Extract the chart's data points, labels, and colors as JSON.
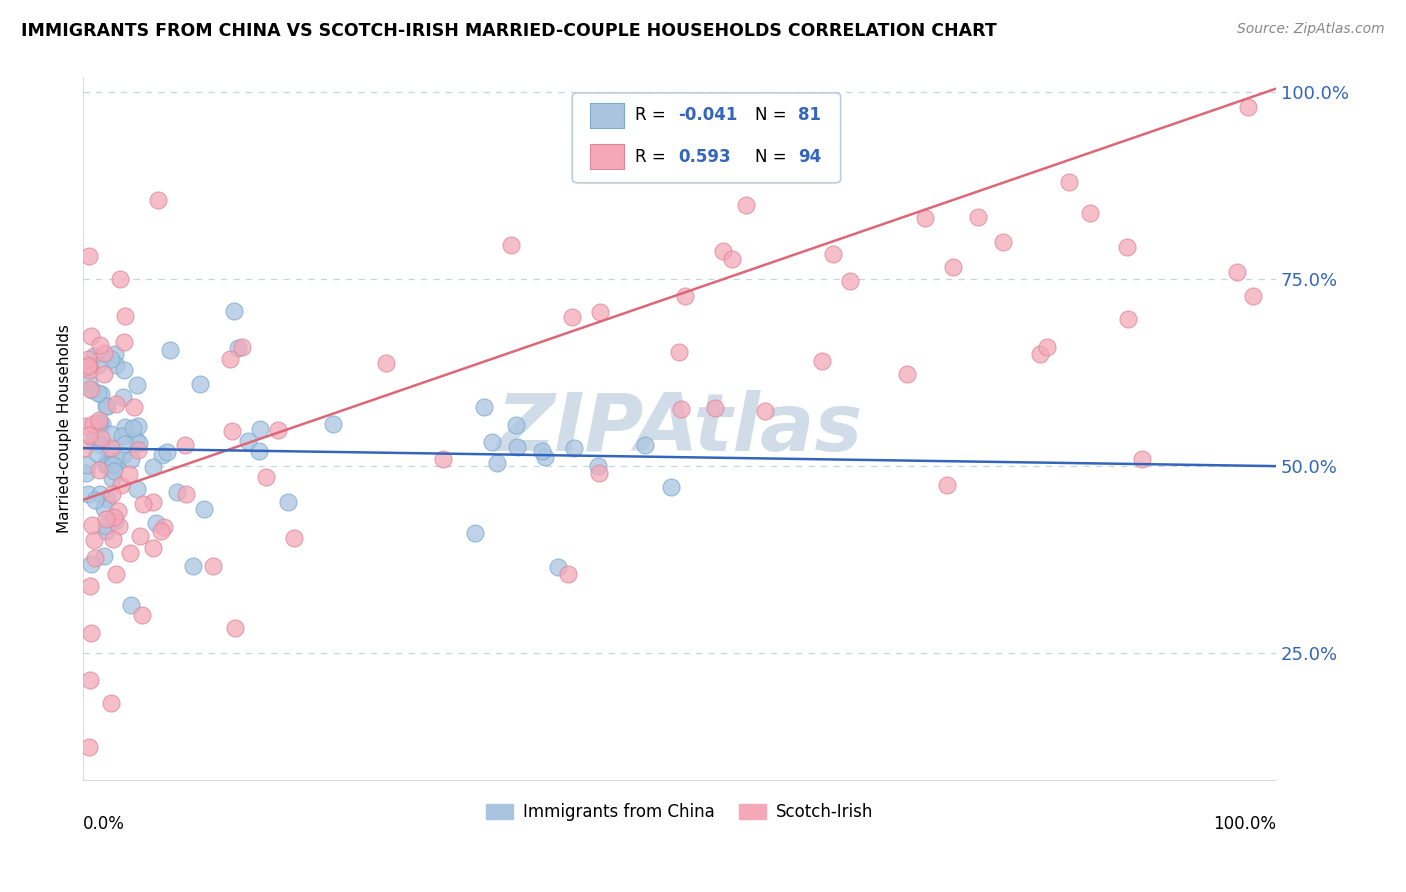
{
  "title": "IMMIGRANTS FROM CHINA VS SCOTCH-IRISH MARRIED-COUPLE HOUSEHOLDS CORRELATION CHART",
  "source": "Source: ZipAtlas.com",
  "ylabel": "Married-couple Households",
  "legend_entries": [
    {
      "label": "Immigrants from China",
      "R": -0.041,
      "N": 81,
      "color": "#aac4e0"
    },
    {
      "label": "Scotch-Irish",
      "R": 0.593,
      "N": 94,
      "color": "#f4a8b8"
    }
  ],
  "blue_line_color": "#3366bb",
  "pink_line_color": "#dd6677",
  "watermark_text": "ZIPAtlas",
  "watermark_color": "#d0dde8",
  "background_color": "#ffffff",
  "grid_color": "#c8d4e0",
  "blue_scatter_color": "#aac4e0",
  "pink_scatter_color": "#f4a8b8",
  "blue_scatter_edge": "#7aabcf",
  "pink_scatter_edge": "#dd8899",
  "xlim": [
    0.0,
    1.0
  ],
  "ylim": [
    0.08,
    1.02
  ],
  "yticks": [
    0.25,
    0.5,
    0.75,
    1.0
  ],
  "yticklabels": [
    "25.0%",
    "50.0%",
    "75.0%",
    "100.0%"
  ],
  "blue_line_y": [
    0.524,
    0.5
  ],
  "pink_line_y": [
    0.455,
    1.005
  ],
  "blue_seed": 123,
  "pink_seed": 456
}
